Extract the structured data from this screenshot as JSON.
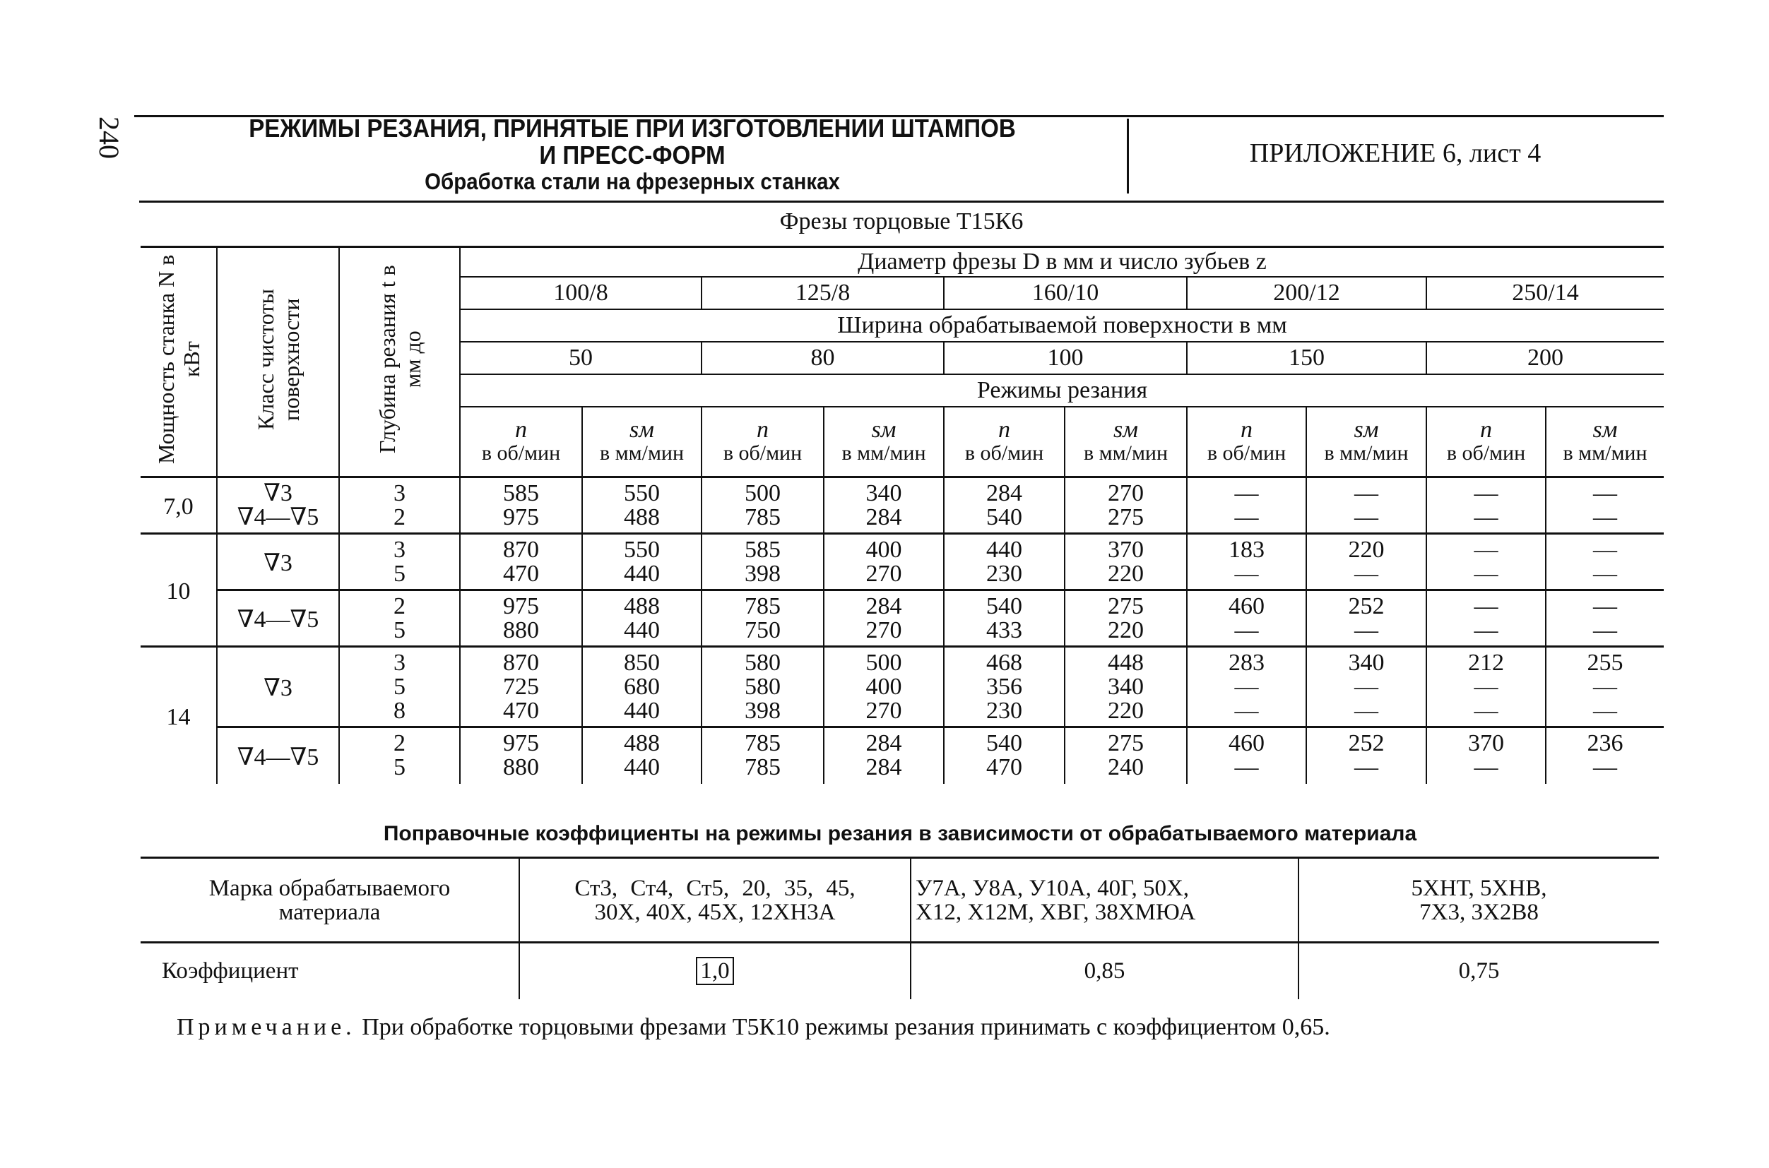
{
  "page_number": "240",
  "header": {
    "title_line1": "РЕЖИМЫ РЕЗАНИЯ, ПРИНЯТЫЕ ПРИ ИЗГОТОВЛЕНИИ ШТАМПОВ",
    "title_line2": "И ПРЕСС-ФОРМ",
    "subtitle": "Обработка стали на фрезерных станках",
    "appendix": "ПРИЛОЖЕНИЕ 6, лист 4"
  },
  "cutter_title": "Фрезы торцовые Т15К6",
  "main_table": {
    "col_power": "Мощность станка N в кВт",
    "col_class": "Класс чистоты поверхности",
    "col_depth": "Глубина резания t в мм до",
    "diameter_header": "Диаметр фрезы D в мм и число зубьев z",
    "diameters": [
      "100/8",
      "125/8",
      "160/10",
      "200/12",
      "250/14"
    ],
    "width_header": "Ширина обрабатываемой поверхности в мм",
    "widths": [
      "50",
      "80",
      "100",
      "150",
      "200"
    ],
    "modes_header": "Режимы резания",
    "n_sym": "n",
    "n_unit": "в об/мин",
    "s_sym": "sм",
    "s_unit": "в мм/мин",
    "groups": [
      {
        "power": "7,0",
        "subgroups": [
          {
            "class": [
              "∇3",
              "∇4—∇5"
            ],
            "depths": [
              "3",
              "2"
            ],
            "values": [
              [
                "585",
                "550",
                "500",
                "340",
                "284",
                "270",
                "—",
                "—",
                "—",
                "—"
              ],
              [
                "975",
                "488",
                "785",
                "284",
                "540",
                "275",
                "—",
                "—",
                "—",
                "—"
              ]
            ]
          }
        ]
      },
      {
        "power": "10",
        "subgroups": [
          {
            "class": [
              "∇3"
            ],
            "depths": [
              "3",
              "5"
            ],
            "values": [
              [
                "870",
                "550",
                "585",
                "400",
                "440",
                "370",
                "183",
                "220",
                "—",
                "—"
              ],
              [
                "470",
                "440",
                "398",
                "270",
                "230",
                "220",
                "—",
                "—",
                "—",
                "—"
              ]
            ]
          },
          {
            "class": [
              "∇4—∇5"
            ],
            "depths": [
              "2",
              "5"
            ],
            "values": [
              [
                "975",
                "488",
                "785",
                "284",
                "540",
                "275",
                "460",
                "252",
                "—",
                "—"
              ],
              [
                "880",
                "440",
                "750",
                "270",
                "433",
                "220",
                "—",
                "—",
                "—",
                "—"
              ]
            ]
          }
        ]
      },
      {
        "power": "14",
        "subgroups": [
          {
            "class": [
              "∇3"
            ],
            "depths": [
              "3",
              "5",
              "8"
            ],
            "values": [
              [
                "870",
                "850",
                "580",
                "500",
                "468",
                "448",
                "283",
                "340",
                "212",
                "255"
              ],
              [
                "725",
                "680",
                "580",
                "400",
                "356",
                "340",
                "—",
                "—",
                "—",
                "—"
              ],
              [
                "470",
                "440",
                "398",
                "270",
                "230",
                "220",
                "—",
                "—",
                "—",
                "—"
              ]
            ]
          },
          {
            "class": [
              "∇4—∇5"
            ],
            "depths": [
              "2",
              "5"
            ],
            "values": [
              [
                "975",
                "488",
                "785",
                "284",
                "540",
                "275",
                "460",
                "252",
                "370",
                "236"
              ],
              [
                "880",
                "440",
                "785",
                "284",
                "470",
                "240",
                "—",
                "—",
                "—",
                "—"
              ]
            ]
          }
        ]
      }
    ]
  },
  "correction": {
    "title": "Поправочные коэффициенты на режимы резания в зависимости от обрабатываемого материала",
    "material_label": "Марка обрабатываемого материала",
    "coef_label": "Коэффициент",
    "materials": [
      {
        "line1": "Ст3, Ст4, Ст5, 20, 35, 45,",
        "line2": "30Х, 40Х, 45Х, 12ХН3А",
        "coef": "1,0"
      },
      {
        "line1": "У7А, У8А, У10А, 40Г, 50Х,",
        "line2": "Х12, Х12М, ХВГ, 38ХМЮА",
        "coef": "0,85"
      },
      {
        "line1": "5ХНТ, 5ХНВ,",
        "line2": "7Х3, 3Х2В8",
        "coef": "0,75"
      }
    ]
  },
  "note": {
    "label": "Примечание.",
    "text": "При обработке торцовыми фрезами Т5К10 режимы резания принимать с коэффициентом 0,65."
  }
}
